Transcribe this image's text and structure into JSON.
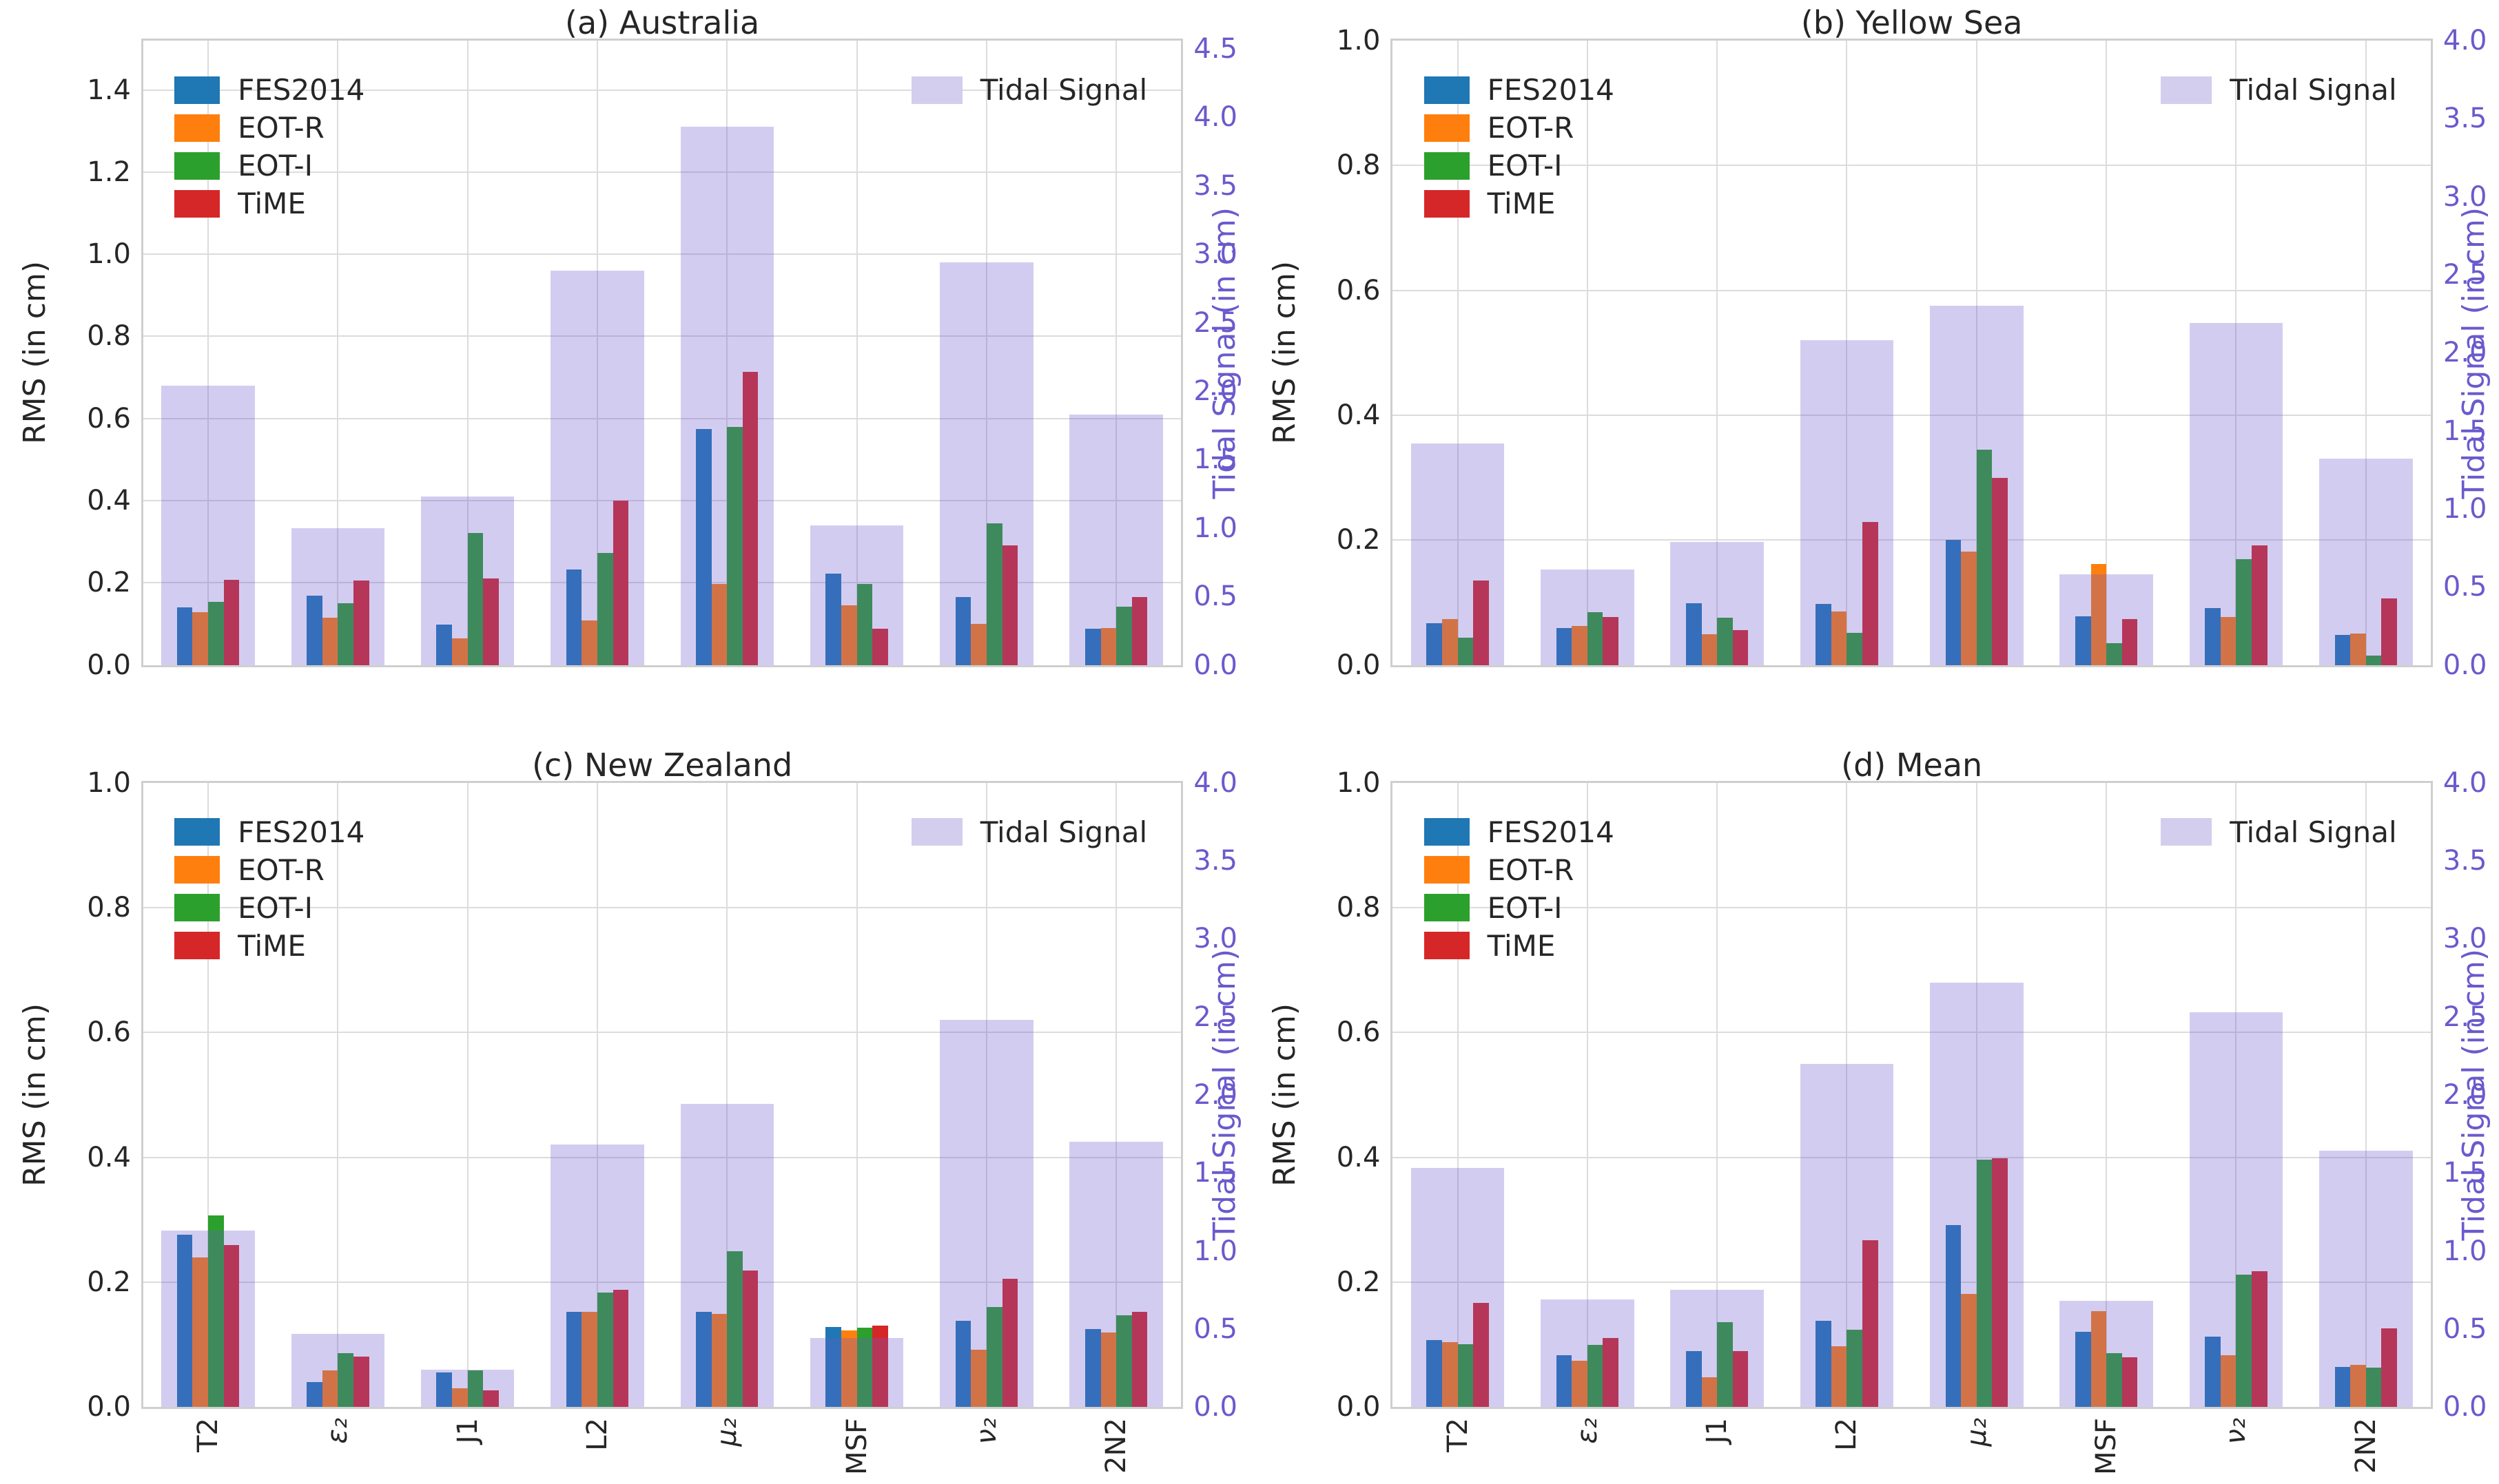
{
  "colors": {
    "fes2014": "#1f77b4",
    "eot_r": "#ff7f0e",
    "eot_i": "#2ca02c",
    "time": "#d62728",
    "tidal_fill": "rgba(106,90,205,0.30)",
    "tidal_legend_swatch": "#d3cdee",
    "right_axis_text": "#6a5acd",
    "grid": "#dcdcdc",
    "spine": "#cfcfcf",
    "text": "#262626"
  },
  "chart_data": [
    {
      "type": "bar",
      "title": "(a) Australia",
      "ylabel_left": "RMS (in cm)",
      "ylabel_right": "Tidal Signal (in cm)",
      "categories": [
        "T2",
        "ε₂",
        "J1",
        "L2",
        "μ₂",
        "MSF",
        "ν₂",
        "2N2"
      ],
      "ylim_left": [
        0,
        1.52
      ],
      "ylim_right": [
        0,
        4.56
      ],
      "yticks_left": [
        0.0,
        0.2,
        0.4,
        0.6,
        0.8,
        1.0,
        1.2,
        1.4
      ],
      "yticks_right": [
        0.0,
        0.5,
        1.0,
        1.5,
        2.0,
        2.5,
        3.0,
        3.5,
        4.0,
        4.5
      ],
      "grid": true,
      "show_xticklabels": false,
      "legend_position": "upper left",
      "series": [
        {
          "name": "FES2014",
          "color": "#1f77b4",
          "values": [
            0.14,
            0.168,
            0.098,
            0.232,
            0.575,
            0.223,
            0.166,
            0.089
          ]
        },
        {
          "name": "EOT-R",
          "color": "#ff7f0e",
          "values": [
            0.128,
            0.115,
            0.064,
            0.109,
            0.198,
            0.145,
            0.1,
            0.09
          ]
        },
        {
          "name": "EOT-I",
          "color": "#2ca02c",
          "values": [
            0.153,
            0.15,
            0.322,
            0.272,
            0.58,
            0.197,
            0.345,
            0.142
          ]
        },
        {
          "name": "TiME",
          "color": "#d62728",
          "values": [
            0.207,
            0.205,
            0.21,
            0.4,
            0.713,
            0.088,
            0.292,
            0.166
          ]
        }
      ],
      "tidal_signal": {
        "name": "Tidal Signal",
        "axis": "right",
        "values": [
          2.04,
          1.0,
          1.23,
          2.88,
          3.93,
          1.02,
          2.94,
          1.83
        ]
      }
    },
    {
      "type": "bar",
      "title": "(b) Yellow Sea",
      "ylabel_left": "RMS (in cm)",
      "ylabel_right": "Tidal Signal (in cm)",
      "categories": [
        "T2",
        "ε₂",
        "J1",
        "L2",
        "μ₂",
        "MSF",
        "ν₂",
        "2N2"
      ],
      "ylim_left": [
        0,
        1.0
      ],
      "ylim_right": [
        0,
        4.0
      ],
      "yticks_left": [
        0.0,
        0.2,
        0.4,
        0.6,
        0.8,
        1.0
      ],
      "yticks_right": [
        0.0,
        0.5,
        1.0,
        1.5,
        2.0,
        2.5,
        3.0,
        3.5,
        4.0
      ],
      "grid": true,
      "show_xticklabels": false,
      "legend_position": "upper left",
      "series": [
        {
          "name": "FES2014",
          "color": "#1f77b4",
          "values": [
            0.067,
            0.059,
            0.099,
            0.098,
            0.2,
            0.078,
            0.091,
            0.048
          ]
        },
        {
          "name": "EOT-R",
          "color": "#ff7f0e",
          "values": [
            0.074,
            0.063,
            0.049,
            0.086,
            0.182,
            0.162,
            0.077,
            0.05
          ]
        },
        {
          "name": "EOT-I",
          "color": "#2ca02c",
          "values": [
            0.044,
            0.085,
            0.076,
            0.052,
            0.345,
            0.035,
            0.169,
            0.015
          ]
        },
        {
          "name": "TiME",
          "color": "#d62728",
          "values": [
            0.135,
            0.077,
            0.056,
            0.229,
            0.3,
            0.073,
            0.192,
            0.107
          ]
        }
      ],
      "tidal_signal": {
        "name": "Tidal Signal",
        "axis": "right",
        "values": [
          1.42,
          0.61,
          0.79,
          2.08,
          2.3,
          0.58,
          2.19,
          1.32
        ]
      }
    },
    {
      "type": "bar",
      "title": "(c) New Zealand",
      "ylabel_left": "RMS (in cm)",
      "ylabel_right": "Tidal Signal (in cm)",
      "categories": [
        "T2",
        "ε₂",
        "J1",
        "L2",
        "μ₂",
        "MSF",
        "ν₂",
        "2N2"
      ],
      "ylim_left": [
        0,
        1.0
      ],
      "ylim_right": [
        0,
        4.0
      ],
      "yticks_left": [
        0.0,
        0.2,
        0.4,
        0.6,
        0.8,
        1.0
      ],
      "yticks_right": [
        0.0,
        0.5,
        1.0,
        1.5,
        2.0,
        2.5,
        3.0,
        3.5,
        4.0
      ],
      "grid": true,
      "show_xticklabels": true,
      "legend_position": "upper left",
      "series": [
        {
          "name": "FES2014",
          "color": "#1f77b4",
          "values": [
            0.276,
            0.04,
            0.055,
            0.152,
            0.152,
            0.128,
            0.138,
            0.125
          ]
        },
        {
          "name": "EOT-R",
          "color": "#ff7f0e",
          "values": [
            0.239,
            0.059,
            0.03,
            0.152,
            0.149,
            0.123,
            0.092,
            0.119
          ]
        },
        {
          "name": "EOT-I",
          "color": "#2ca02c",
          "values": [
            0.307,
            0.086,
            0.059,
            0.183,
            0.249,
            0.127,
            0.16,
            0.147
          ]
        },
        {
          "name": "TiME",
          "color": "#d62728",
          "values": [
            0.259,
            0.081,
            0.027,
            0.188,
            0.219,
            0.13,
            0.205,
            0.152
          ]
        }
      ],
      "tidal_signal": {
        "name": "Tidal Signal",
        "axis": "right",
        "values": [
          1.13,
          0.47,
          0.24,
          1.68,
          1.94,
          0.44,
          2.48,
          1.7
        ]
      }
    },
    {
      "type": "bar",
      "title": "(d) Mean",
      "ylabel_left": "RMS (in cm)",
      "ylabel_right": "Tidal Signal (in cm)",
      "categories": [
        "T2",
        "ε₂",
        "J1",
        "L2",
        "μ₂",
        "MSF",
        "ν₂",
        "2N2"
      ],
      "ylim_left": [
        0,
        1.0
      ],
      "ylim_right": [
        0,
        4.0
      ],
      "yticks_left": [
        0.0,
        0.2,
        0.4,
        0.6,
        0.8,
        1.0
      ],
      "yticks_right": [
        0.0,
        0.5,
        1.0,
        1.5,
        2.0,
        2.5,
        3.0,
        3.5,
        4.0
      ],
      "grid": true,
      "show_xticklabels": true,
      "legend_position": "upper left",
      "series": [
        {
          "name": "FES2014",
          "color": "#1f77b4",
          "values": [
            0.107,
            0.083,
            0.09,
            0.138,
            0.291,
            0.12,
            0.113,
            0.064
          ]
        },
        {
          "name": "EOT-R",
          "color": "#ff7f0e",
          "values": [
            0.104,
            0.074,
            0.048,
            0.097,
            0.181,
            0.154,
            0.083,
            0.067
          ]
        },
        {
          "name": "EOT-I",
          "color": "#2ca02c",
          "values": [
            0.101,
            0.1,
            0.136,
            0.124,
            0.396,
            0.086,
            0.212,
            0.063
          ]
        },
        {
          "name": "TiME",
          "color": "#d62728",
          "values": [
            0.167,
            0.11,
            0.089,
            0.267,
            0.398,
            0.08,
            0.217,
            0.126
          ]
        }
      ],
      "tidal_signal": {
        "name": "Tidal Signal",
        "axis": "right",
        "values": [
          1.53,
          0.69,
          0.75,
          2.2,
          2.72,
          0.68,
          2.53,
          1.64
        ]
      }
    }
  ]
}
